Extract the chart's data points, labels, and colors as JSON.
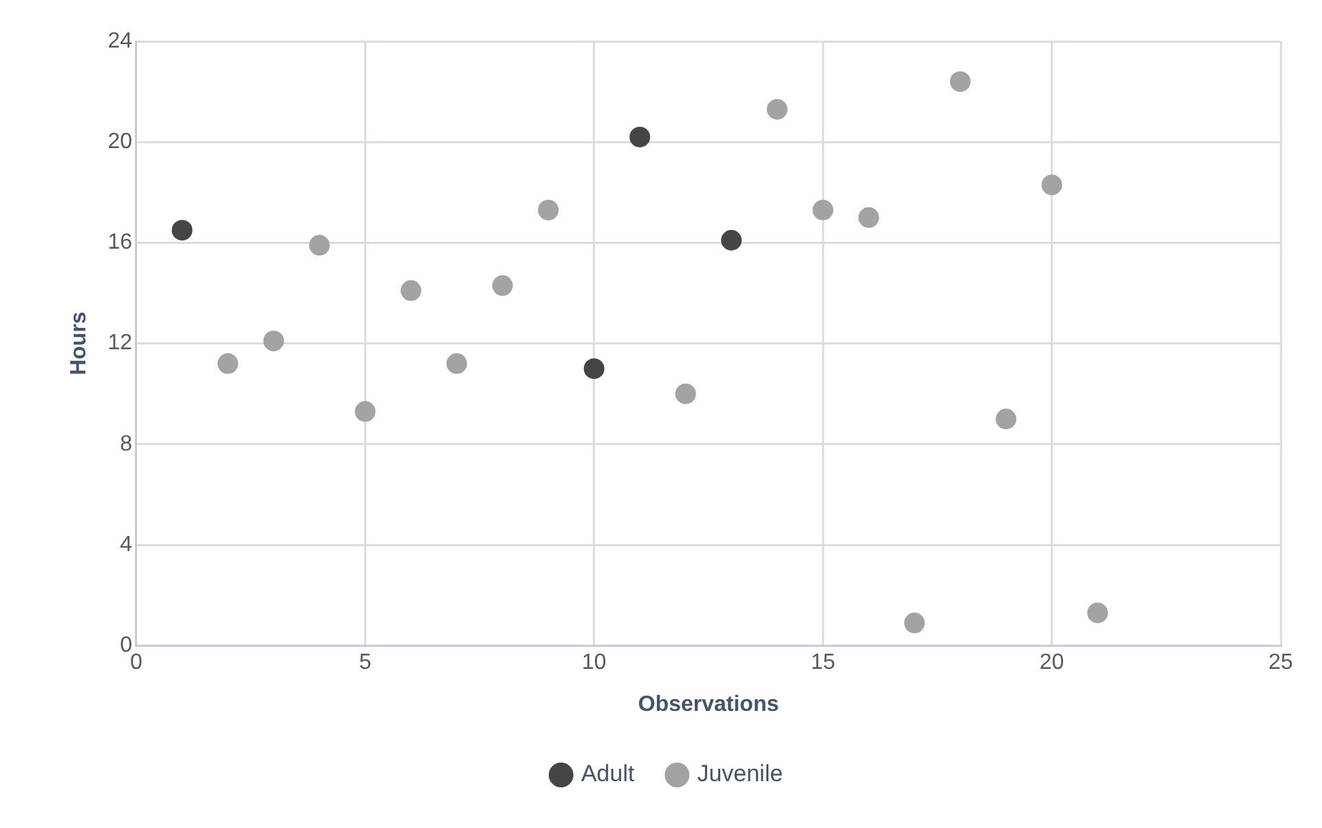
{
  "chart_data": {
    "type": "scatter",
    "xlabel": "Observations",
    "ylabel": "Hours",
    "xlim": [
      0,
      25
    ],
    "xticks": [
      0,
      5,
      10,
      15,
      20,
      25
    ],
    "ylim": [
      0,
      24
    ],
    "yticks": [
      0,
      4,
      8,
      12,
      16,
      20,
      24
    ],
    "grid": true,
    "legend": "bottom",
    "marker": "circle",
    "series": [
      {
        "name": "Adult",
        "color": "#454545",
        "x": [
          1,
          10,
          11,
          13
        ],
        "values": [
          16.5,
          11.0,
          20.2,
          16.1
        ]
      },
      {
        "name": "Juvenile",
        "color": "#a3a3a3",
        "x": [
          2,
          3,
          4,
          5,
          6,
          7,
          8,
          9,
          12,
          14,
          15,
          16,
          17,
          18,
          19,
          20,
          21
        ],
        "values": [
          11.2,
          12.1,
          15.9,
          9.3,
          14.1,
          11.2,
          14.3,
          17.3,
          10.0,
          21.3,
          17.3,
          17.0,
          0.9,
          22.4,
          9.0,
          18.3,
          1.3
        ]
      }
    ]
  }
}
